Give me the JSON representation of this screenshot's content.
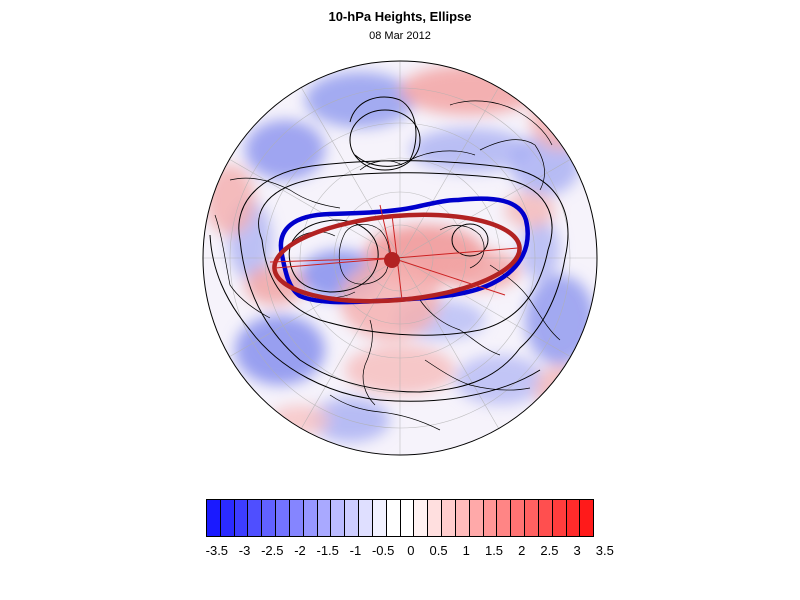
{
  "title": "10-hPa Heights, Ellipse",
  "subtitle": "08 Mar 2012",
  "colorbar": {
    "levels": [
      "-3.5",
      "-3",
      "-2.5",
      "-2",
      "-1.5",
      "-1",
      "-0.5",
      "0",
      "0.5",
      "1",
      "1.5",
      "2",
      "2.5",
      "3",
      "3.5"
    ],
    "colors": [
      "#1a1aff",
      "#2b2bff",
      "#3d3dff",
      "#4f4fff",
      "#6161ff",
      "#7373ff",
      "#8585ff",
      "#9797ff",
      "#a9a9ff",
      "#bbbbff",
      "#cdcdff",
      "#dfdfff",
      "#f1f1ff",
      "#ffffff",
      "#ffffff",
      "#fff1f1",
      "#ffdfdf",
      "#ffcdcd",
      "#ffbbbb",
      "#ffa9a9",
      "#ff9797",
      "#ff8585",
      "#ff7373",
      "#ff6161",
      "#ff4f4f",
      "#ff3d3d",
      "#ff2b2b",
      "#ff1a1a"
    ]
  },
  "map": {
    "projection": "polar-stereographic-north",
    "contour_color": "#000000",
    "ellipse_observed_color": "#0000cc",
    "ellipse_fit_color": "#b22222",
    "center_marker_color": "#b22222"
  }
}
